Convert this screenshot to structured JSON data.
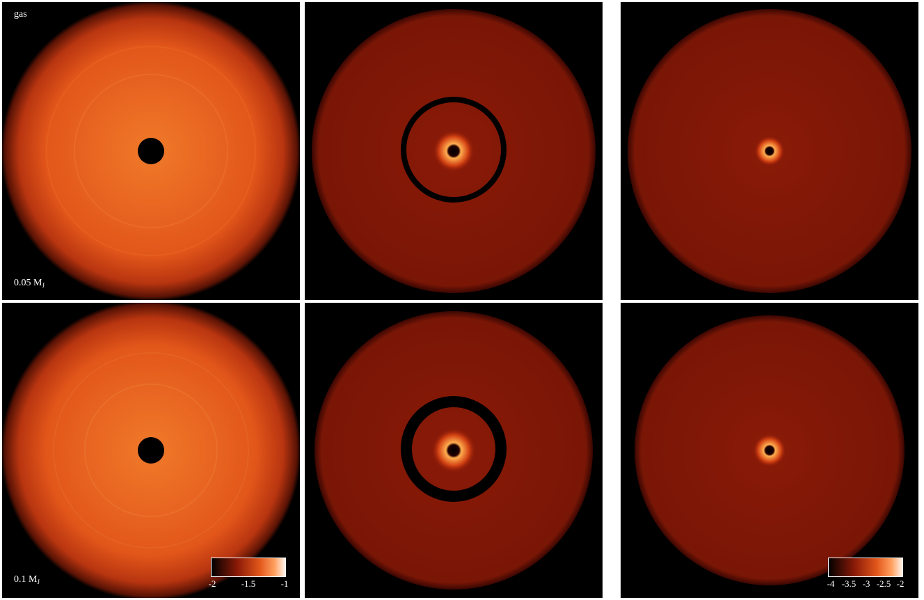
{
  "panels": {
    "top_left_label": "gas",
    "row1_label_main": "0.05 M",
    "row1_label_sub": "J",
    "row2_label_main": "0.1 M",
    "row2_label_sub": "J"
  },
  "colorbar_gas": {
    "ticks": [
      "-2",
      "-1.5",
      "-1"
    ]
  },
  "colorbar_dust": {
    "ticks": [
      "-4",
      "-3.5",
      "-3",
      "-2.5",
      "-2"
    ]
  },
  "colors": {
    "background": "#000000",
    "gas_disc": "#e2561a",
    "dust_disc": "#8a1a08",
    "dust_center": "#ff9a3a"
  }
}
